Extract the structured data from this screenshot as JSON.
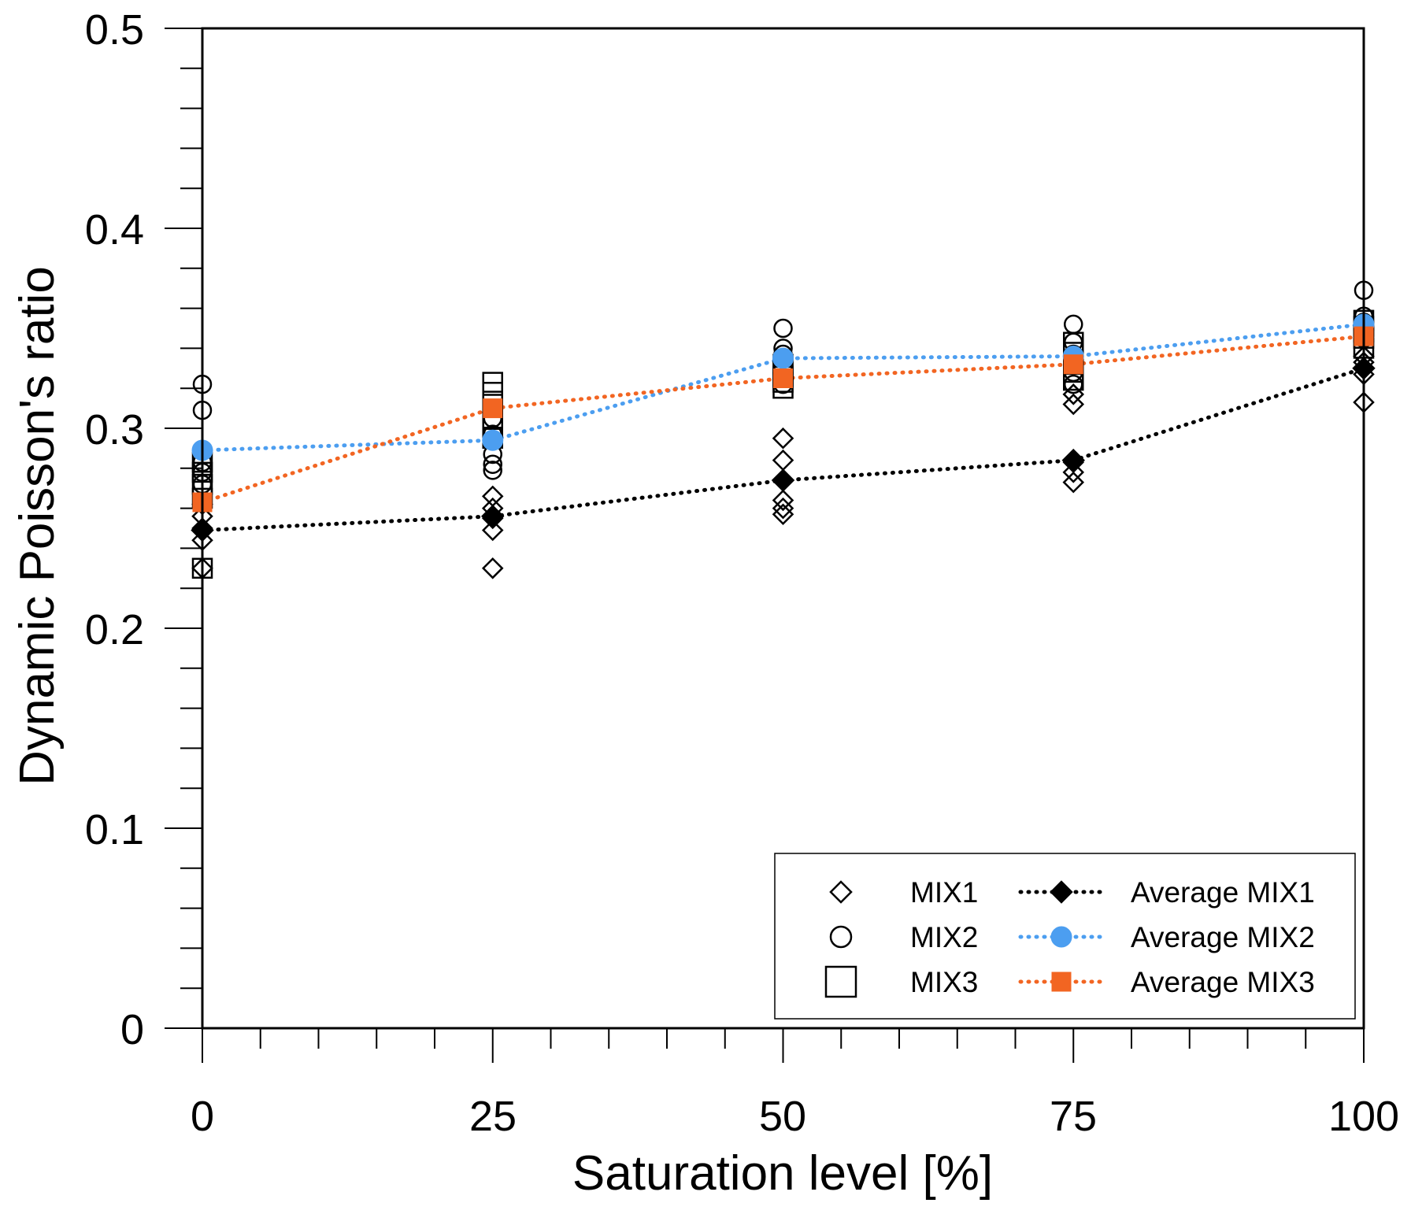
{
  "chart_data": {
    "type": "scatter",
    "title": "",
    "xlabel": "Saturation level [%]",
    "ylabel": "Dynamic Poisson's ratio",
    "xlim": [
      0,
      100
    ],
    "ylim": [
      0,
      0.5
    ],
    "xticks": [
      0,
      25,
      50,
      75,
      100
    ],
    "xtick_labels": [
      "0",
      "25",
      "50",
      "75",
      "100"
    ],
    "yticks": [
      0,
      0.1,
      0.2,
      0.3,
      0.4,
      0.5
    ],
    "ytick_labels": [
      "0",
      "0.1",
      "0.2",
      "0.3",
      "0.4",
      "0.5"
    ],
    "grid": false,
    "legend_position": "bottom-right",
    "scatter_series": [
      {
        "name": "MIX1",
        "marker": "diamond-open",
        "color": "#000000",
        "points": [
          [
            0,
            0.23
          ],
          [
            0,
            0.244
          ],
          [
            0,
            0.25
          ],
          [
            0,
            0.256
          ],
          [
            0,
            0.262
          ],
          [
            25,
            0.23
          ],
          [
            25,
            0.249
          ],
          [
            25,
            0.255
          ],
          [
            25,
            0.26
          ],
          [
            25,
            0.266
          ],
          [
            50,
            0.257
          ],
          [
            50,
            0.26
          ],
          [
            50,
            0.264
          ],
          [
            50,
            0.284
          ],
          [
            50,
            0.295
          ],
          [
            75,
            0.273
          ],
          [
            75,
            0.278
          ],
          [
            75,
            0.283
          ],
          [
            75,
            0.312
          ],
          [
            75,
            0.317
          ],
          [
            100,
            0.313
          ],
          [
            100,
            0.327
          ],
          [
            100,
            0.33
          ],
          [
            100,
            0.333
          ],
          [
            100,
            0.336
          ]
        ]
      },
      {
        "name": "MIX2",
        "marker": "circle-open",
        "color": "#000000",
        "points": [
          [
            0,
            0.272
          ],
          [
            0,
            0.278
          ],
          [
            0,
            0.283
          ],
          [
            0,
            0.309
          ],
          [
            0,
            0.322
          ],
          [
            25,
            0.279
          ],
          [
            25,
            0.282
          ],
          [
            25,
            0.287
          ],
          [
            25,
            0.297
          ],
          [
            25,
            0.305
          ],
          [
            50,
            0.322
          ],
          [
            50,
            0.33
          ],
          [
            50,
            0.337
          ],
          [
            50,
            0.34
          ],
          [
            50,
            0.35
          ],
          [
            75,
            0.322
          ],
          [
            75,
            0.328
          ],
          [
            75,
            0.337
          ],
          [
            75,
            0.343
          ],
          [
            75,
            0.352
          ],
          [
            100,
            0.345
          ],
          [
            100,
            0.35
          ],
          [
            100,
            0.353
          ],
          [
            100,
            0.356
          ],
          [
            100,
            0.369
          ]
        ]
      },
      {
        "name": "MIX3",
        "marker": "square-open",
        "color": "#000000",
        "points": [
          [
            0,
            0.23
          ],
          [
            0,
            0.265
          ],
          [
            0,
            0.272
          ],
          [
            0,
            0.278
          ],
          [
            0,
            0.283
          ],
          [
            25,
            0.295
          ],
          [
            25,
            0.305
          ],
          [
            25,
            0.312
          ],
          [
            25,
            0.318
          ],
          [
            25,
            0.323
          ],
          [
            50,
            0.32
          ],
          [
            50,
            0.323
          ],
          [
            50,
            0.326
          ],
          [
            50,
            0.329
          ],
          [
            50,
            0.332
          ],
          [
            75,
            0.324
          ],
          [
            75,
            0.328
          ],
          [
            75,
            0.332
          ],
          [
            75,
            0.338
          ],
          [
            75,
            0.343
          ],
          [
            100,
            0.34
          ],
          [
            100,
            0.345
          ],
          [
            100,
            0.348
          ],
          [
            100,
            0.351
          ],
          [
            100,
            0.354
          ]
        ]
      }
    ],
    "line_series": [
      {
        "name": "Average MIX1",
        "marker": "diamond-filled",
        "color": "#000000",
        "x": [
          0,
          25,
          50,
          75,
          100
        ],
        "y": [
          0.249,
          0.256,
          0.274,
          0.284,
          0.33
        ]
      },
      {
        "name": "Average MIX2",
        "marker": "circle-filled",
        "color": "#4c9ef0",
        "x": [
          0,
          25,
          50,
          75,
          100
        ],
        "y": [
          0.289,
          0.294,
          0.335,
          0.336,
          0.352
        ]
      },
      {
        "name": "Average MIX3",
        "marker": "square-filled",
        "color": "#f26522",
        "x": [
          0,
          25,
          50,
          75,
          100
        ],
        "y": [
          0.263,
          0.31,
          0.325,
          0.332,
          0.346
        ]
      }
    ]
  }
}
